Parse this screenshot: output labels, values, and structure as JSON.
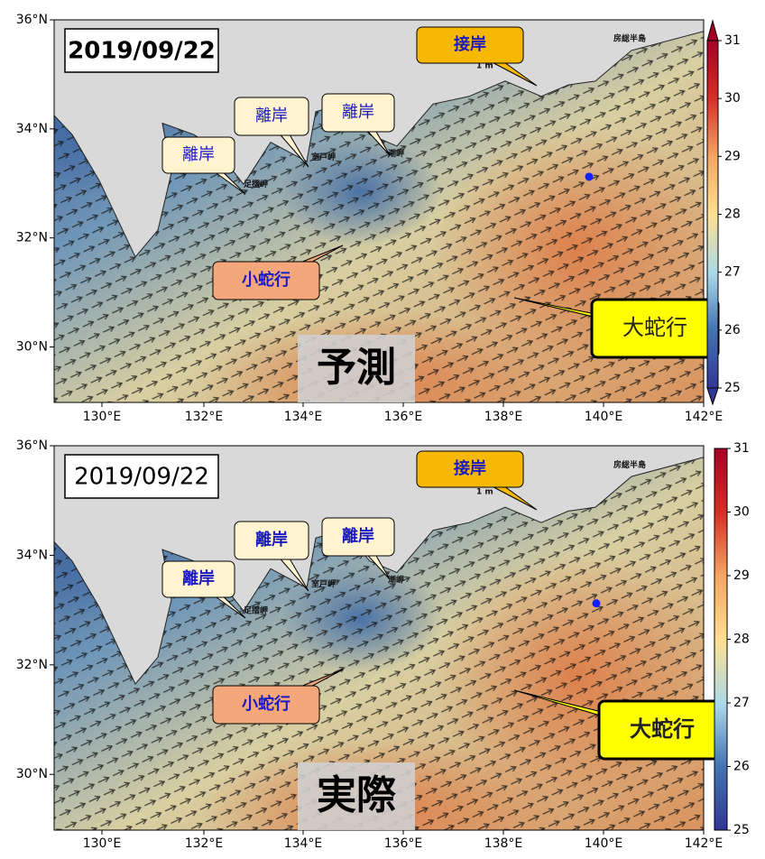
{
  "axes": {
    "yticks": [
      "36°N",
      "34°N",
      "32°N",
      "30°N"
    ],
    "xticks": [
      "130°E",
      "132°E",
      "134°E",
      "136°E",
      "138°E",
      "140°E",
      "142°E"
    ]
  },
  "places": [
    "足摺岬",
    "室戸岬",
    "潮岬",
    "房総半島",
    "1 m"
  ],
  "panels": [
    {
      "date": "2019/09/22",
      "label": "予測",
      "annotations": [
        "接岸",
        "離岸",
        "離岸",
        "離岸",
        "小蛇行",
        "大蛇行"
      ],
      "colorbar": {
        "lim": [
          25,
          31
        ],
        "ticks": [
          25,
          26,
          27,
          28,
          29,
          30,
          31
        ]
      }
    },
    {
      "date": "2019/09/22",
      "label": "実際",
      "annotations": [
        "接岸",
        "離岸",
        "離岸",
        "離岸",
        "小蛇行",
        "大蛇行"
      ],
      "colorbar": {
        "lim": [
          25,
          31
        ],
        "ticks": [
          25,
          26,
          27,
          28,
          29,
          30,
          31
        ]
      }
    }
  ]
}
